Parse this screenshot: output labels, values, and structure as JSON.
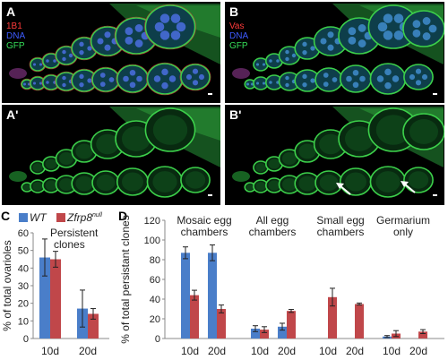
{
  "panels": {
    "A": {
      "label": "A",
      "channels": [
        {
          "text": "1B1",
          "color": "#ff3b3b"
        },
        {
          "text": "DNA",
          "color": "#3d5bff"
        },
        {
          "text": "GFP",
          "color": "#36e05a"
        }
      ]
    },
    "B": {
      "label": "B",
      "channels": [
        {
          "text": "Vas",
          "color": "#ff3b3b"
        },
        {
          "text": "DNA",
          "color": "#3d5bff"
        },
        {
          "text": "GFP",
          "color": "#36e05a"
        }
      ]
    },
    "A2": {
      "label": "A'",
      "channels": []
    },
    "B2": {
      "label": "B'",
      "channels": []
    }
  },
  "colors": {
    "wt": "#4a7ec9",
    "zfrp": "#c0474a",
    "gfp": "#3ccf4a",
    "dna": "#4a6fe0",
    "red": "#d8343b"
  },
  "chart_data": [
    {
      "panel_label": "C",
      "type": "bar",
      "ylabel": "% of total ovarioles",
      "ylim": [
        0,
        60
      ],
      "yticks": [
        0,
        10,
        20,
        30,
        40,
        50,
        60
      ],
      "annotation": "Persistent clones",
      "categories": [
        "10d",
        "20d"
      ],
      "legend": [
        {
          "name": "WT",
          "italic": true
        },
        {
          "name": "Zfrp8",
          "sup": "null",
          "italic": true
        }
      ],
      "series": [
        {
          "name": "WT",
          "values": [
            46,
            17
          ],
          "errors": [
            10.5,
            10.5
          ]
        },
        {
          "name": "Zfrp8null",
          "values": [
            45,
            14
          ],
          "errors": [
            4.5,
            3
          ]
        }
      ]
    },
    {
      "panel_label": "D",
      "type": "bar",
      "ylabel": "% of total persistant clones",
      "ylim": [
        0,
        120
      ],
      "yticks": [
        0,
        20,
        40,
        60,
        80,
        100,
        120
      ],
      "groups": [
        {
          "label": [
            "Mosaic egg",
            "chambers"
          ],
          "categories": [
            "10d",
            "20d"
          ]
        },
        {
          "label": [
            "All egg",
            "chambers"
          ],
          "categories": [
            "10d",
            "20d"
          ]
        },
        {
          "label": [
            "Small egg",
            "chambers"
          ],
          "categories": [
            "10d",
            "20d"
          ]
        },
        {
          "label": [
            "Germarium",
            "only"
          ],
          "categories": [
            "10d",
            "20d"
          ]
        }
      ],
      "series": [
        {
          "name": "WT",
          "values": [
            87,
            87,
            10,
            12,
            0,
            0,
            2,
            0
          ],
          "errors": [
            6,
            8,
            3,
            3.5,
            0,
            0,
            1,
            0
          ]
        },
        {
          "name": "Zfrp8null",
          "values": [
            44,
            30,
            9,
            28,
            42,
            35,
            5,
            7
          ],
          "errors": [
            5,
            4,
            3,
            1.5,
            9,
            1,
            3,
            2
          ]
        }
      ]
    }
  ]
}
